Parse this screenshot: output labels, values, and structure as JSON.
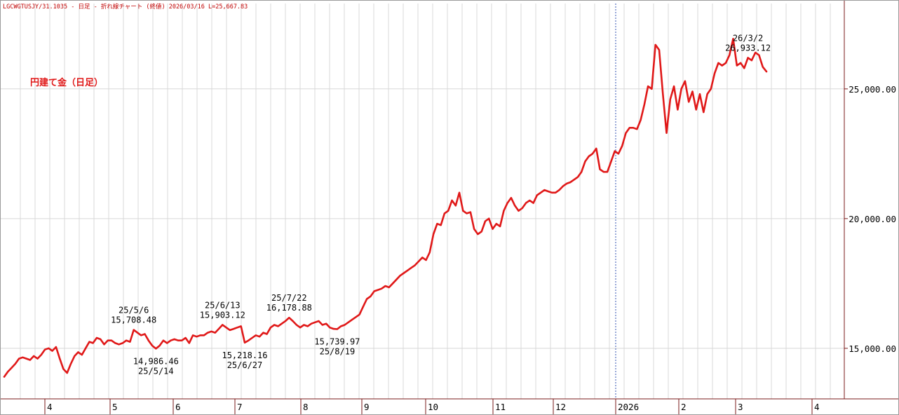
{
  "header": {
    "text": "LGCWGTUSJY/31.1035 - 日足 - 折れ線チャート (終値) 2026/03/16 L=25,667.83"
  },
  "chart_data": {
    "type": "line",
    "title": "円建て金（日足）",
    "y_tick_labels": [
      "15,000.00",
      "20,000.00",
      "25,000.00"
    ],
    "y_ticks": [
      15000,
      20000,
      25000
    ],
    "ylim": [
      13050,
      28400
    ],
    "x_month_labels": [
      "4",
      "5",
      "6",
      "7",
      "8",
      "9",
      "10",
      "11",
      "12",
      "2026",
      "2",
      "3",
      "4"
    ],
    "grid": true,
    "colors": {
      "line": "#e01818",
      "title": "#e01818",
      "header": "#c00000",
      "grid": "#d8d8d8",
      "axis": "#7a1a1a",
      "divider": "#3050b0"
    },
    "series": [
      {
        "values": [
          13900,
          14100,
          14250,
          14400,
          14600,
          14650,
          14600,
          14550,
          14700,
          14600,
          14750,
          14950,
          15000,
          14900,
          15050,
          14600,
          14200,
          14050,
          14400,
          14700,
          14850,
          14750,
          15000,
          15250,
          15200,
          15400,
          15350,
          15150,
          15300,
          15300,
          15200,
          15150,
          15200,
          15300,
          15250,
          15708.48,
          15600,
          15500,
          15550,
          15300,
          15100,
          14986.46,
          15100,
          15300,
          15200,
          15300,
          15350,
          15300,
          15300,
          15400,
          15200,
          15500,
          15450,
          15500,
          15500,
          15600,
          15650,
          15600,
          15750,
          15903.12,
          15800,
          15700,
          15750,
          15800,
          15850,
          15218.16,
          15300,
          15400,
          15500,
          15450,
          15600,
          15550,
          15800,
          15900,
          15850,
          15950,
          16050,
          16178.88,
          16050,
          15900,
          15800,
          15900,
          15850,
          15950,
          16000,
          16050,
          15900,
          15950,
          15800,
          15750,
          15739.97,
          15850,
          15900,
          16000,
          16100,
          16200,
          16300,
          16600,
          16900,
          17000,
          17200,
          17250,
          17300,
          17400,
          17350,
          17500,
          17650,
          17800,
          17900,
          18000,
          18100,
          18200,
          18350,
          18500,
          18400,
          18700,
          19400,
          19800,
          19750,
          20200,
          20300,
          20700,
          20500,
          21000,
          20300,
          20200,
          20250,
          19600,
          19400,
          19500,
          19900,
          20000,
          19600,
          19800,
          19700,
          20300,
          20600,
          20800,
          20500,
          20300,
          20400,
          20600,
          20700,
          20600,
          20900,
          21000,
          21100,
          21050,
          21000,
          21000,
          21100,
          21250,
          21350,
          21400,
          21500,
          21600,
          21800,
          22200,
          22400,
          22500,
          22700,
          21900,
          21800,
          21800,
          22200,
          22600,
          22500,
          22800,
          23300,
          23500,
          23500,
          23450,
          23800,
          24400,
          25100,
          25000,
          26700,
          26500,
          24800,
          23300,
          24600,
          25100,
          24200,
          25000,
          25300,
          24500,
          24900,
          24200,
          24800,
          24100,
          24800,
          25000,
          25600,
          26000,
          25900,
          26000,
          26300,
          26933.12,
          25900,
          26000,
          25800,
          26200,
          26100,
          26400,
          26300,
          25850,
          25667.83
        ]
      }
    ],
    "annotations": [
      {
        "date": "25/5/6",
        "value": "15,708.48",
        "index": 35,
        "pos": "above"
      },
      {
        "date": "25/5/14",
        "value": "14,986.46",
        "index": 41,
        "pos": "below"
      },
      {
        "date": "25/6/13",
        "value": "15,903.12",
        "index": 59,
        "pos": "above"
      },
      {
        "date": "25/6/27",
        "value": "15,218.16",
        "index": 65,
        "pos": "below"
      },
      {
        "date": "25/7/22",
        "value": "16,178.88",
        "index": 77,
        "pos": "above"
      },
      {
        "date": "25/8/19",
        "value": "15,739.97",
        "index": 90,
        "pos": "below"
      },
      {
        "date": "26/3/2",
        "value": "26,933.12",
        "index": 201,
        "pos": "above"
      }
    ]
  }
}
